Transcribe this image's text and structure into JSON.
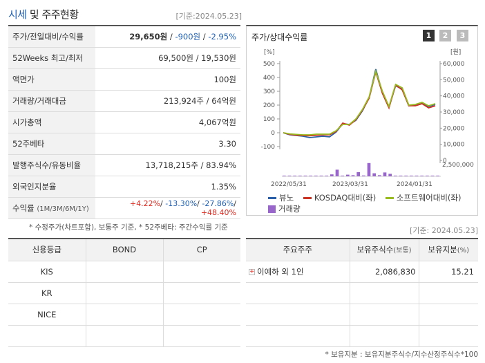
{
  "header": {
    "title_part1": "시세",
    "title_part2": " 및 주주현황",
    "date": "[기준:2024.05.23]"
  },
  "quote_rows": [
    {
      "label": "주가/전일대비/수익률",
      "v1": "29,650원",
      "sep1": " / ",
      "v2": "-900원",
      "sep2": " / ",
      "v3": "-2.95%"
    },
    {
      "label": "52Weeks 최고/최저",
      "value": "69,500원 / 19,530원"
    },
    {
      "label": "액면가",
      "value": "100원"
    },
    {
      "label": "거래량/거래대금",
      "value": "213,924주 / 64억원"
    },
    {
      "label": "시가총액",
      "value": "4,067억원"
    },
    {
      "label": "52주베타",
      "value": "3.30"
    },
    {
      "label": "발행주식수/유동비율",
      "value": "13,718,215주 / 83.94%"
    },
    {
      "label": "외국인지분율",
      "value": "1.35%"
    },
    {
      "label": "수익률",
      "label_small": "(1M/3M/6M/1Y)",
      "r1": "+4.22%",
      "r2": "-13.30%",
      "r3": "-27.86%",
      "r4": "+48.40%"
    }
  ],
  "note1": "* 수정주가(차트포함), 보통주 기준, * 52주베타: 주간수익률 기준",
  "chart_panel": {
    "title": "주가/상대수익률",
    "buttons": [
      "1",
      "2",
      "3"
    ]
  },
  "chart_data": {
    "type": "line",
    "left_axis_unit": "[%]",
    "right_axis_unit": "[원]",
    "left_ticks": [
      500,
      400,
      300,
      200,
      100,
      0,
      -100
    ],
    "right_ticks": [
      "60,000",
      "50,000",
      "40,000",
      "30,000",
      "20,000",
      "10,000",
      "0"
    ],
    "volume_tick": "2,500,000",
    "x_ticks": [
      "2022/05/31",
      "2023/03/31",
      "2024/01/31"
    ],
    "ylim": [
      -100,
      500
    ],
    "series": [
      {
        "name": "뷰노",
        "color": "#2a5fa8",
        "values": [
          0,
          -15,
          -20,
          -25,
          -35,
          -30,
          -25,
          -30,
          5,
          65,
          60,
          90,
          160,
          255,
          460,
          290,
          185,
          340,
          315,
          195,
          200,
          215,
          190,
          205
        ]
      },
      {
        "name": "KOSDAQ대비(좌)",
        "color": "#cc3322",
        "values": [
          0,
          -12,
          -18,
          -20,
          -22,
          -18,
          -15,
          -15,
          10,
          70,
          55,
          95,
          165,
          250,
          440,
          285,
          180,
          345,
          310,
          195,
          195,
          210,
          180,
          195
        ]
      },
      {
        "name": "소프트웨어대비(좌)",
        "color": "#99bb22",
        "values": [
          0,
          -8,
          -12,
          -15,
          -15,
          -10,
          -10,
          -10,
          15,
          60,
          60,
          100,
          170,
          260,
          445,
          300,
          190,
          350,
          325,
          200,
          205,
          220,
          195,
          210
        ]
      }
    ],
    "volume": {
      "name": "거래량",
      "color": "#9966cc",
      "values": [
        0.05,
        0.05,
        0.05,
        0.05,
        0.05,
        0.05,
        0.05,
        0.05,
        0.05,
        0.35,
        1.2,
        0.1,
        0.3,
        0.2,
        0.75,
        0.15,
        2.4,
        0.55,
        0.2,
        0.7,
        0.45,
        0.1,
        0.05,
        0.05,
        0.05,
        0.05,
        0.05,
        0.05,
        0.05,
        0.05
      ]
    }
  },
  "date2": "[기준: 2024.05.23]",
  "credit": {
    "headers": [
      "신용등급",
      "BOND",
      "CP"
    ],
    "rows": [
      "KIS",
      "KR",
      "NICE",
      ""
    ]
  },
  "holders": {
    "headers": [
      "주요주주",
      "보유주식수",
      "(보통)",
      "보유지분",
      "(%)"
    ],
    "rows": [
      {
        "name": "이예하 외 1인",
        "shares": "2,086,830",
        "pct": "15.21"
      }
    ]
  },
  "note2": "* 보유지분 : 보유지분주식수/지수산정주식수*100"
}
